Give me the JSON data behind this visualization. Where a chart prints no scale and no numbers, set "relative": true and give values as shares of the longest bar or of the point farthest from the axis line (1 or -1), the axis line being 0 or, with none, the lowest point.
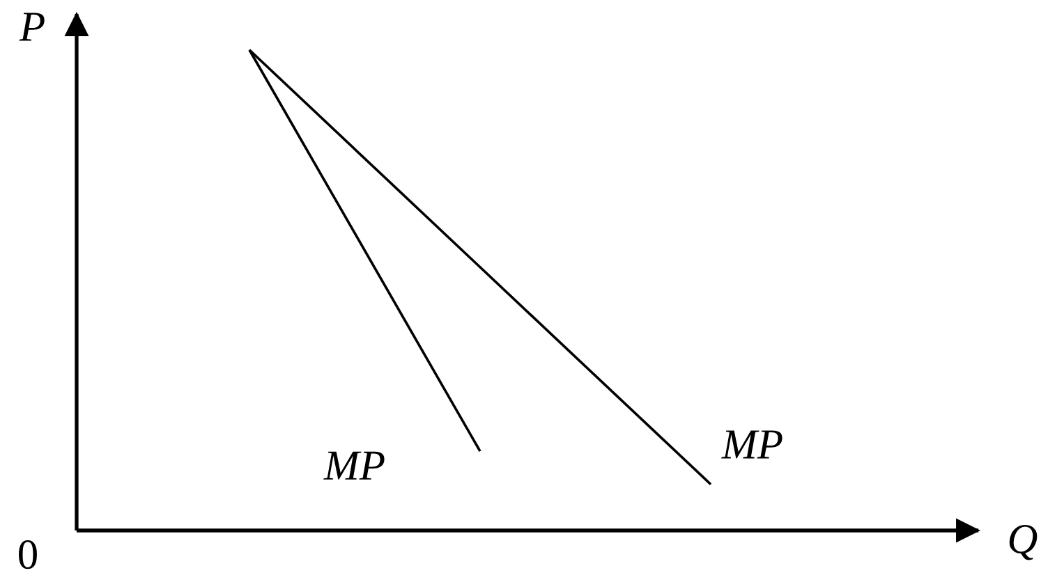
{
  "chart_data": {
    "type": "line",
    "relative": true,
    "xlabel": "Q",
    "ylabel": "P",
    "categories": [
      null,
      null,
      null
    ],
    "series": [
      {
        "name": "MP",
        "color": "#000000",
        "values": [
          1,
          0.165,
          null
        ]
      },
      {
        "name": "MP",
        "color": "#000000",
        "values": [
          1,
          0.548,
          0.096
        ]
      }
    ],
    "annotations": [
      "0"
    ]
  }
}
